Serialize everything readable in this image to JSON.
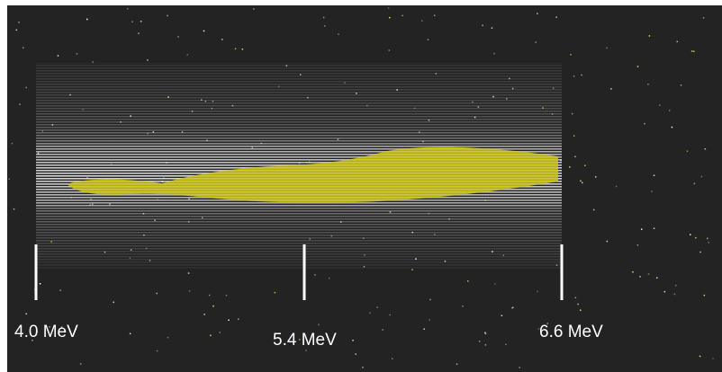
{
  "labels": [
    "4.0 MeV",
    "5.4 MeV",
    "6.6 MeV"
  ]
}
